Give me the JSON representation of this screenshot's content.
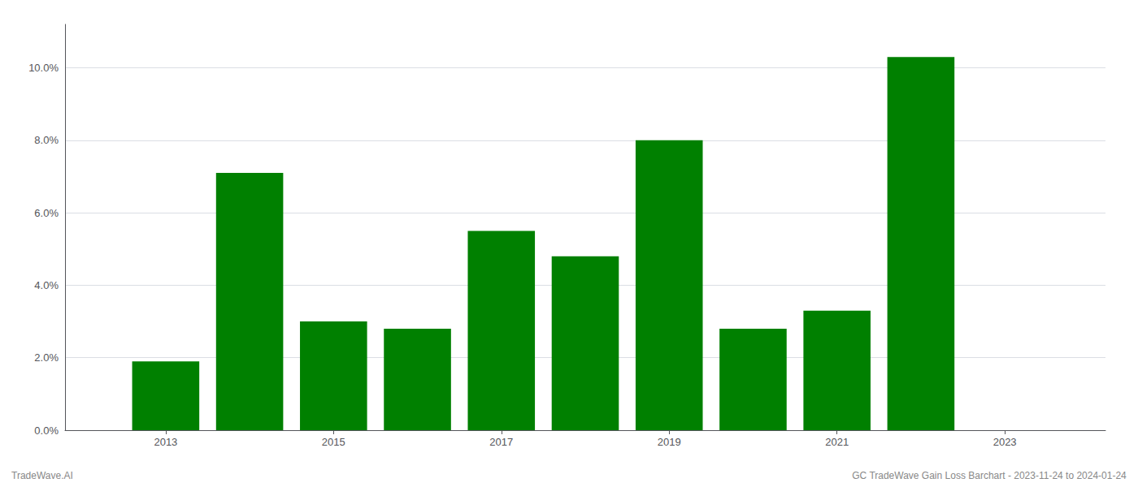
{
  "chart_data": {
    "type": "bar",
    "x": [
      2013,
      2014,
      2015,
      2016,
      2017,
      2018,
      2019,
      2020,
      2021,
      2022
    ],
    "values": [
      0.019,
      0.071,
      0.03,
      0.028,
      0.055,
      0.048,
      0.08,
      0.028,
      0.033,
      0.103
    ],
    "color": "#008000",
    "xlim": [
      2011.8,
      2024.2
    ],
    "xticks": [
      2013,
      2015,
      2017,
      2019,
      2021,
      2023
    ],
    "ylim": [
      0,
      0.112
    ],
    "yticks": [
      {
        "value": 0.0,
        "label": "0.0%"
      },
      {
        "value": 0.02,
        "label": "2.0%"
      },
      {
        "value": 0.04,
        "label": "4.0%"
      },
      {
        "value": 0.06,
        "label": "6.0%"
      },
      {
        "value": 0.08,
        "label": "8.0%"
      },
      {
        "value": 0.1,
        "label": "10.0%"
      }
    ],
    "grid": true,
    "annotations": [
      "TradeWave.AI",
      "GC TradeWave Gain Loss Barchart - 2023-11-24 to 2024-01-24"
    ]
  }
}
